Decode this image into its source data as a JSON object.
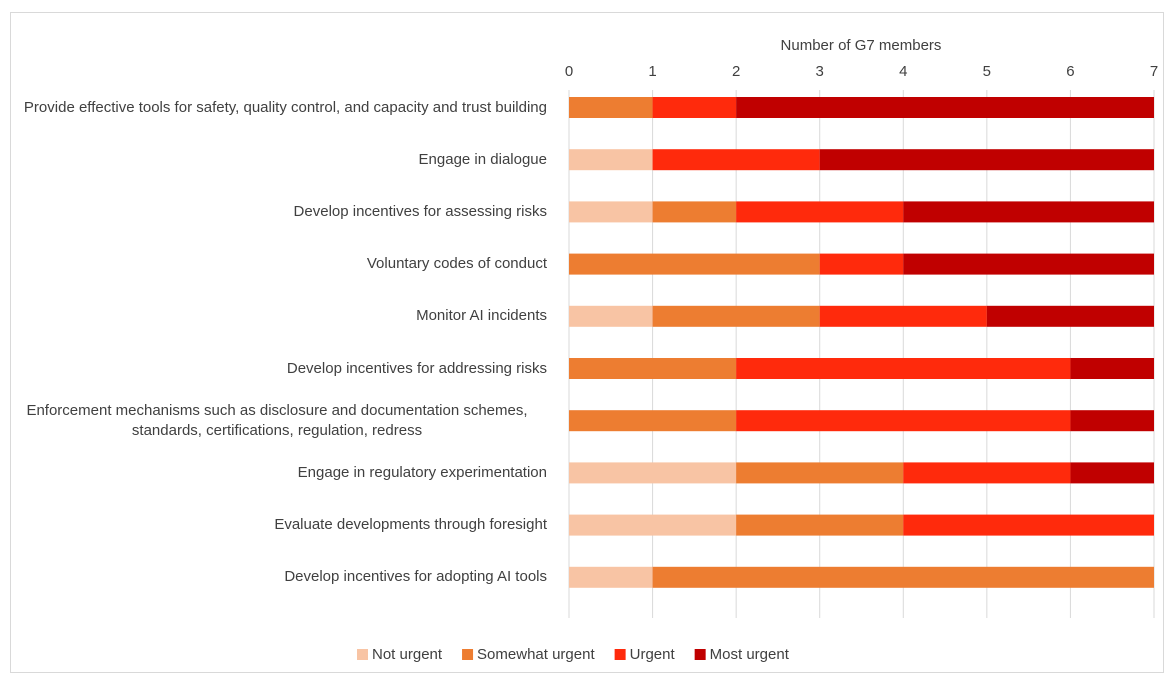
{
  "chart_data": {
    "type": "stacked-bar-horizontal",
    "x_axis_label": "Number of G7 members",
    "categories": [
      "Provide effective tools for safety, quality control, and capacity and trust building",
      "Engage in dialogue",
      "Develop incentives for assessing risks",
      "Voluntary codes of conduct",
      "Monitor AI incidents",
      "Develop incentives for addressing risks",
      "Enforcement mechanisms such as disclosure and documentation schemes, standards, certifications, regulation, redress",
      "Engage in regulatory experimentation",
      "Evaluate developments through foresight",
      "Develop incentives for adopting AI tools"
    ],
    "series": [
      {
        "name": "Not urgent",
        "color": "#f8c4a4",
        "values": [
          0,
          1,
          1,
          0,
          1,
          0,
          0,
          2,
          2,
          1
        ]
      },
      {
        "name": "Somewhat urgent",
        "color": "#ed7d31",
        "values": [
          1,
          0,
          1,
          3,
          2,
          2,
          2,
          2,
          2,
          6
        ]
      },
      {
        "name": "Urgent",
        "color": "#ff2a0c",
        "values": [
          1,
          2,
          2,
          1,
          2,
          4,
          4,
          2,
          3,
          0
        ]
      },
      {
        "name": "Most urgent",
        "color": "#c00000",
        "values": [
          5,
          4,
          3,
          3,
          2,
          1,
          1,
          1,
          0,
          0
        ]
      }
    ],
    "xlim": [
      0,
      7
    ],
    "xticks": [
      0,
      1,
      2,
      3,
      4,
      5,
      6,
      7
    ],
    "grid": true,
    "legend": "bottom"
  }
}
